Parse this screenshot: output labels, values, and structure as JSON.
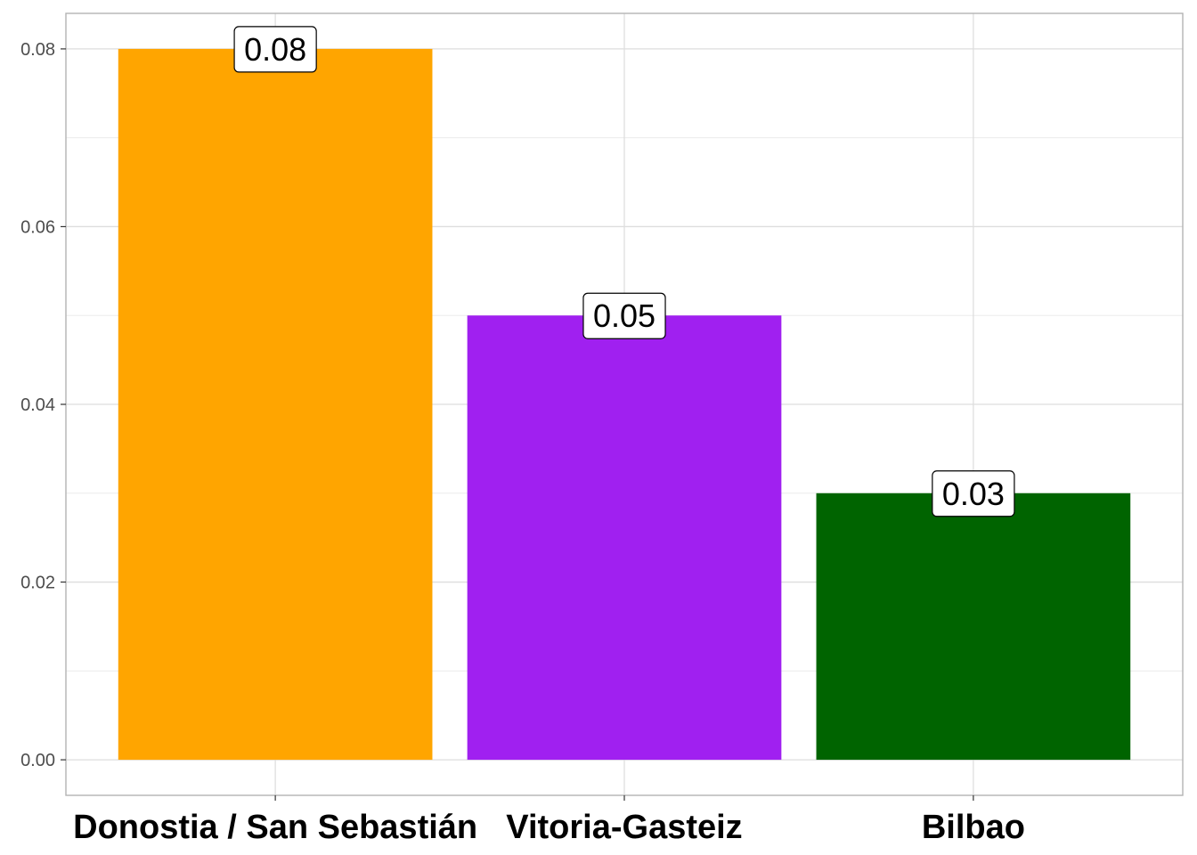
{
  "chart_data": {
    "type": "bar",
    "categories": [
      "Donostia / San Sebastián",
      "Vitoria-Gasteiz",
      "Bilbao"
    ],
    "values": [
      0.08,
      0.05,
      0.03
    ],
    "data_labels": [
      "0.08",
      "0.05",
      "0.03"
    ],
    "colors": [
      "#FFA500",
      "#A020F0",
      "#006400"
    ],
    "title": "",
    "xlabel": "",
    "ylabel": "",
    "ylim": [
      -0.004,
      0.084
    ],
    "yticks": [
      0.0,
      0.02,
      0.04,
      0.06,
      0.08
    ],
    "ytick_labels": [
      "0.00",
      "0.02",
      "0.04",
      "0.06",
      "0.08"
    ],
    "grid": true,
    "legend": "none"
  }
}
